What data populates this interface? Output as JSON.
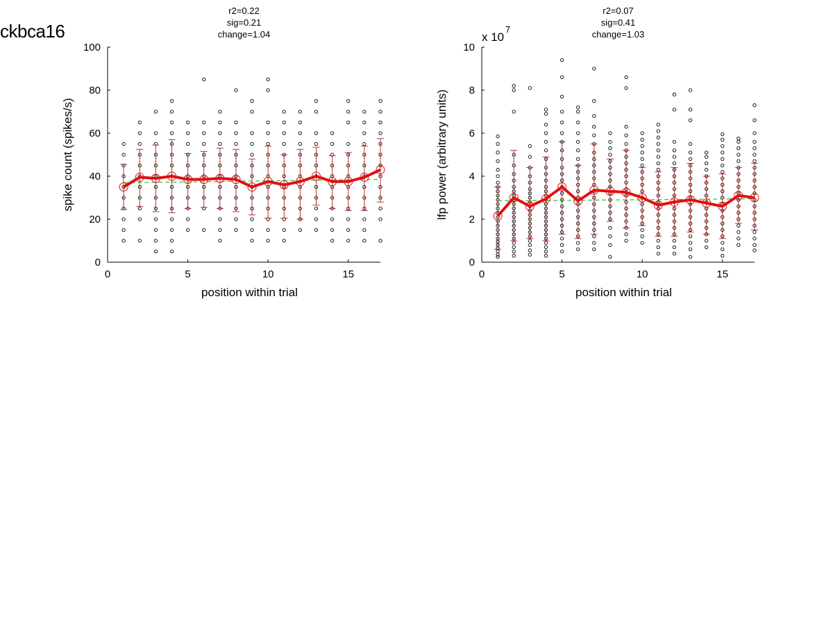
{
  "page": {
    "label": "ckbca16"
  },
  "chart_data": [
    {
      "type": "scatter",
      "title_lines": [
        "r2=0.22",
        "sig=0.21",
        "change=1.04"
      ],
      "xlabel": "position within trial",
      "ylabel": "spike count (spikes/s)",
      "xlim": [
        0,
        17
      ],
      "ylim": [
        0,
        100
      ],
      "xticks": [
        0,
        5,
        10,
        15
      ],
      "yticks": [
        0,
        20,
        40,
        60,
        80,
        100
      ],
      "exponent_label": "",
      "colors": {
        "points": "#000000",
        "mean": "#e01010",
        "error": "#b03030",
        "fit": "#33bb33"
      },
      "mean_line": {
        "x": [
          1,
          2,
          3,
          4,
          5,
          6,
          7,
          8,
          9,
          10,
          11,
          12,
          13,
          14,
          15,
          16,
          17
        ],
        "y": [
          35,
          39.5,
          39,
          40,
          38.5,
          38.5,
          39,
          38.5,
          35,
          37.5,
          36,
          37.5,
          40,
          37.5,
          37.5,
          39.5,
          43
        ]
      },
      "error_bars": {
        "x": [
          1,
          2,
          3,
          4,
          5,
          6,
          7,
          8,
          9,
          10,
          11,
          12,
          13,
          14,
          15,
          16,
          17
        ],
        "low": [
          24.5,
          26,
          23.5,
          23,
          25,
          25.5,
          25,
          23.5,
          22,
          20.5,
          20.5,
          20,
          26.5,
          25,
          24,
          24,
          28
        ],
        "high": [
          45.5,
          52.5,
          54.5,
          57,
          50.5,
          51.5,
          53,
          52.5,
          48,
          54,
          50,
          52.5,
          53.5,
          49.5,
          51,
          54,
          57.5
        ]
      },
      "fit_line": {
        "x": [
          1,
          17
        ],
        "y": [
          37,
          38.5
        ]
      },
      "points": [
        {
          "x": 1,
          "y": [
            10,
            15,
            20,
            25,
            30,
            35,
            40,
            45,
            50,
            55
          ]
        },
        {
          "x": 2,
          "y": [
            10,
            20,
            25,
            30,
            35,
            40,
            45,
            50,
            55,
            60,
            65
          ]
        },
        {
          "x": 3,
          "y": [
            5,
            10,
            15,
            20,
            25,
            30,
            35,
            40,
            45,
            50,
            55,
            60,
            70
          ]
        },
        {
          "x": 4,
          "y": [
            5,
            10,
            15,
            20,
            25,
            30,
            35,
            40,
            45,
            50,
            55,
            60,
            65,
            70,
            75
          ]
        },
        {
          "x": 5,
          "y": [
            15,
            20,
            25,
            30,
            35,
            40,
            45,
            50,
            55,
            60,
            65
          ]
        },
        {
          "x": 6,
          "y": [
            15,
            25,
            30,
            35,
            40,
            45,
            50,
            55,
            60,
            65,
            85
          ]
        },
        {
          "x": 7,
          "y": [
            10,
            15,
            20,
            25,
            30,
            35,
            40,
            45,
            50,
            55,
            60,
            65,
            70
          ]
        },
        {
          "x": 8,
          "y": [
            15,
            20,
            25,
            30,
            35,
            40,
            45,
            50,
            55,
            60,
            65,
            80
          ]
        },
        {
          "x": 9,
          "y": [
            10,
            15,
            20,
            25,
            30,
            35,
            40,
            45,
            50,
            55,
            60,
            70,
            75
          ]
        },
        {
          "x": 10,
          "y": [
            10,
            15,
            20,
            25,
            30,
            35,
            40,
            45,
            50,
            55,
            60,
            65,
            80,
            85
          ]
        },
        {
          "x": 11,
          "y": [
            10,
            15,
            20,
            25,
            30,
            35,
            40,
            45,
            50,
            55,
            60,
            65,
            70
          ]
        },
        {
          "x": 12,
          "y": [
            15,
            20,
            25,
            30,
            35,
            40,
            45,
            50,
            55,
            60,
            65,
            70
          ]
        },
        {
          "x": 13,
          "y": [
            15,
            20,
            25,
            30,
            35,
            40,
            45,
            50,
            55,
            60,
            70,
            75
          ]
        },
        {
          "x": 14,
          "y": [
            10,
            15,
            20,
            25,
            30,
            35,
            40,
            45,
            50,
            55,
            60
          ]
        },
        {
          "x": 15,
          "y": [
            10,
            15,
            20,
            25,
            30,
            35,
            40,
            45,
            50,
            55,
            65,
            70,
            75
          ]
        },
        {
          "x": 16,
          "y": [
            10,
            15,
            20,
            25,
            30,
            35,
            40,
            45,
            50,
            55,
            60,
            65,
            70
          ]
        },
        {
          "x": 17,
          "y": [
            10,
            20,
            25,
            30,
            35,
            40,
            45,
            50,
            55,
            60,
            65,
            70,
            75
          ]
        }
      ]
    },
    {
      "type": "scatter",
      "title_lines": [
        "r2=0.07",
        "sig=0.41",
        "change=1.03"
      ],
      "xlabel": "position within trial",
      "ylabel": "lfp power (arbitrary units)",
      "xlim": [
        0,
        17
      ],
      "ylim": [
        0,
        10
      ],
      "xticks": [
        0,
        5,
        10,
        15
      ],
      "yticks": [
        0,
        2,
        4,
        6,
        8,
        10
      ],
      "exponent_label": "x 10",
      "exponent_power": "7",
      "colors": {
        "points": "#000000",
        "mean": "#e01010",
        "error": "#b03030",
        "fit": "#33bb33"
      },
      "mean_line": {
        "x": [
          1,
          2,
          3,
          4,
          5,
          6,
          7,
          8,
          9,
          10,
          11,
          12,
          13,
          14,
          15,
          16,
          17
        ],
        "y": [
          2.15,
          3.0,
          2.6,
          2.95,
          3.5,
          2.85,
          3.35,
          3.3,
          3.25,
          3.0,
          2.65,
          2.8,
          2.9,
          2.75,
          2.6,
          3.1,
          3.0
        ]
      },
      "error_bars": {
        "x": [
          1,
          2,
          3,
          4,
          5,
          6,
          7,
          8,
          9,
          10,
          11,
          12,
          13,
          14,
          15,
          16,
          17
        ],
        "low": [
          0.6,
          1.0,
          1.1,
          1.0,
          1.3,
          1.1,
          1.3,
          1.9,
          1.6,
          1.7,
          1.2,
          1.2,
          1.4,
          1.3,
          1.1,
          1.8,
          1.5
        ],
        "high": [
          3.5,
          5.2,
          4.4,
          4.9,
          5.6,
          4.5,
          5.5,
          4.8,
          5.2,
          4.4,
          4.2,
          4.4,
          4.6,
          4.0,
          4.1,
          4.4,
          4.6
        ]
      },
      "fit_line": {
        "x": [
          1,
          17
        ],
        "y": [
          2.85,
          2.95
        ]
      },
      "points": [
        {
          "x": 1,
          "y": [
            0.25,
            0.35,
            0.5,
            0.65,
            0.8,
            0.95,
            1.1,
            1.3,
            1.5,
            1.7,
            1.9,
            2.1,
            2.3,
            2.5,
            2.7,
            2.9,
            3.1,
            3.3,
            3.5,
            3.7,
            4.0,
            4.3,
            4.7,
            5.1,
            5.5,
            5.85
          ]
        },
        {
          "x": 2,
          "y": [
            0.3,
            0.5,
            0.7,
            0.9,
            1.1,
            1.3,
            1.5,
            1.7,
            1.9,
            2.1,
            2.3,
            2.5,
            2.7,
            2.9,
            3.1,
            3.3,
            3.5,
            3.8,
            4.1,
            4.5,
            5.0,
            7.0,
            8.0,
            8.2
          ]
        },
        {
          "x": 3,
          "y": [
            0.35,
            0.55,
            0.8,
            1.0,
            1.2,
            1.4,
            1.6,
            1.8,
            2.0,
            2.2,
            2.4,
            2.6,
            2.8,
            3.0,
            3.2,
            3.4,
            3.7,
            4.0,
            4.4,
            4.9,
            5.4,
            8.1
          ]
        },
        {
          "x": 4,
          "y": [
            0.3,
            0.5,
            0.7,
            0.9,
            1.1,
            1.3,
            1.5,
            1.7,
            1.9,
            2.1,
            2.3,
            2.5,
            2.7,
            2.9,
            3.1,
            3.3,
            3.5,
            3.8,
            4.1,
            4.4,
            4.8,
            5.2,
            5.6,
            6.0,
            6.4,
            6.9,
            7.1
          ]
        },
        {
          "x": 5,
          "y": [
            0.5,
            0.8,
            1.1,
            1.4,
            1.7,
            2.0,
            2.3,
            2.6,
            2.9,
            3.2,
            3.5,
            3.8,
            4.1,
            4.4,
            4.8,
            5.2,
            5.6,
            6.0,
            6.5,
            7.0,
            7.7,
            8.6,
            9.4
          ]
        },
        {
          "x": 6,
          "y": [
            0.6,
            0.9,
            1.2,
            1.5,
            1.8,
            2.1,
            2.4,
            2.7,
            3.0,
            3.3,
            3.6,
            3.9,
            4.2,
            4.5,
            4.8,
            5.2,
            5.6,
            6.0,
            6.5,
            7.0,
            7.2
          ]
        },
        {
          "x": 7,
          "y": [
            0.6,
            0.9,
            1.2,
            1.5,
            1.8,
            2.1,
            2.4,
            2.7,
            3.0,
            3.3,
            3.6,
            3.9,
            4.2,
            4.5,
            4.8,
            5.1,
            5.5,
            5.9,
            6.3,
            6.8,
            7.5,
            9.0
          ]
        },
        {
          "x": 8,
          "y": [
            0.25,
            0.8,
            1.2,
            1.6,
            2.0,
            2.3,
            2.6,
            2.9,
            3.2,
            3.5,
            3.8,
            4.1,
            4.4,
            4.7,
            5.0,
            5.3,
            5.6,
            6.0
          ]
        },
        {
          "x": 9,
          "y": [
            1.0,
            1.3,
            1.6,
            1.9,
            2.2,
            2.5,
            2.8,
            3.1,
            3.4,
            3.7,
            4.0,
            4.3,
            4.6,
            4.9,
            5.2,
            5.5,
            5.9,
            6.3,
            8.1,
            8.6
          ]
        },
        {
          "x": 10,
          "y": [
            0.9,
            1.2,
            1.5,
            1.8,
            2.1,
            2.4,
            2.7,
            3.0,
            3.3,
            3.6,
            3.9,
            4.2,
            4.5,
            4.8,
            5.1,
            5.4,
            5.7,
            6.0
          ]
        },
        {
          "x": 11,
          "y": [
            0.4,
            0.7,
            1.0,
            1.3,
            1.6,
            1.9,
            2.2,
            2.5,
            2.8,
            3.1,
            3.4,
            3.7,
            4.0,
            4.3,
            4.6,
            4.9,
            5.2,
            5.5,
            5.8,
            6.1,
            6.4
          ]
        },
        {
          "x": 12,
          "y": [
            0.4,
            0.7,
            1.0,
            1.3,
            1.6,
            1.9,
            2.2,
            2.5,
            2.8,
            3.1,
            3.4,
            3.7,
            4.0,
            4.3,
            4.6,
            4.9,
            5.2,
            5.6,
            7.1,
            7.8
          ]
        },
        {
          "x": 13,
          "y": [
            0.25,
            0.6,
            0.9,
            1.2,
            1.5,
            1.8,
            2.1,
            2.4,
            2.7,
            3.0,
            3.3,
            3.6,
            3.9,
            4.2,
            4.5,
            4.8,
            5.1,
            5.5,
            6.6,
            7.1,
            8.0
          ]
        },
        {
          "x": 14,
          "y": [
            0.7,
            1.0,
            1.3,
            1.6,
            1.9,
            2.2,
            2.5,
            2.8,
            3.1,
            3.4,
            3.7,
            4.0,
            4.3,
            4.6,
            4.9,
            5.1
          ]
        },
        {
          "x": 15,
          "y": [
            0.3,
            0.6,
            0.9,
            1.2,
            1.5,
            1.8,
            2.1,
            2.4,
            2.7,
            3.0,
            3.3,
            3.6,
            3.9,
            4.2,
            4.5,
            4.8,
            5.1,
            5.4,
            5.7,
            5.95
          ]
        },
        {
          "x": 16,
          "y": [
            0.8,
            1.1,
            1.4,
            1.7,
            2.0,
            2.3,
            2.6,
            2.9,
            3.2,
            3.5,
            3.8,
            4.1,
            4.4,
            4.7,
            5.0,
            5.3,
            5.6,
            5.75
          ]
        },
        {
          "x": 17,
          "y": [
            0.55,
            0.8,
            1.1,
            1.4,
            1.7,
            2.0,
            2.3,
            2.6,
            2.9,
            3.2,
            3.5,
            3.8,
            4.1,
            4.4,
            4.7,
            5.0,
            5.3,
            5.6,
            6.0,
            6.6,
            7.3
          ]
        }
      ]
    }
  ]
}
